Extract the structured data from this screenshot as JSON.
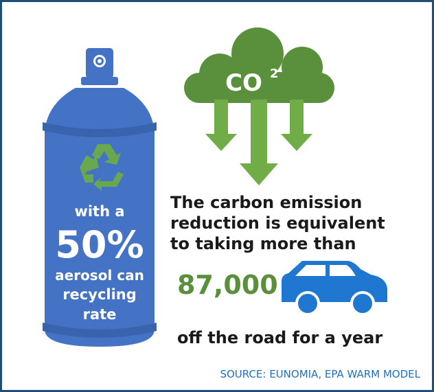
{
  "can": {
    "lines": [
      "with a",
      "50%",
      "aerosol can",
      "recycling",
      "rate"
    ]
  },
  "cloud": {
    "label": "CO",
    "superscript": "2"
  },
  "statement": {
    "lines": [
      "The carbon emission",
      "reduction is equivalent",
      "to taking more than"
    ],
    "number": "87,000",
    "ending": "off the road for a year"
  },
  "source": "SOURCE: EUNOMIA, EPA WARM MODEL"
}
